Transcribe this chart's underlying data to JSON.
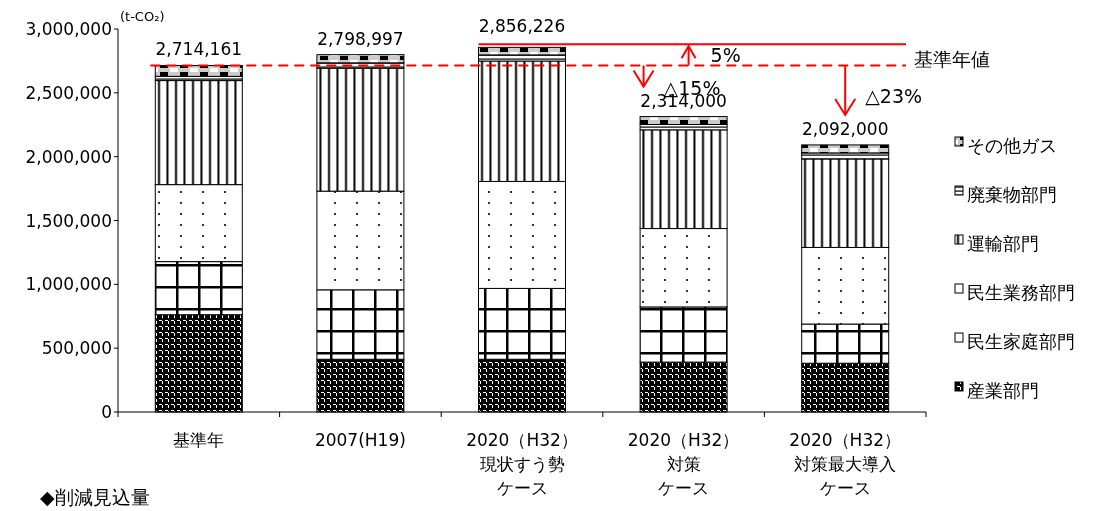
{
  "chart_data": {
    "type": "bar",
    "stacked": true,
    "ylabel": "(t-CO₂)",
    "categories": [
      "基準年",
      "2007(H19)",
      "2020（H32）現状すう勢ケース",
      "2020（H32）対策ケース",
      "2020（H32）対策最大導入ケース"
    ],
    "series": [
      {
        "name": "産業部門",
        "color": "#000000",
        "values": [
          762000,
          413000,
          413000,
          391000,
          382000
        ]
      },
      {
        "name": "民生家庭部門",
        "color": "#000000",
        "values": [
          416000,
          544000,
          555000,
          432000,
          307000
        ]
      },
      {
        "name": "民生業務部門",
        "color": "#000000",
        "values": [
          603000,
          773000,
          838000,
          614000,
          600000
        ]
      },
      {
        "name": "運輸部門",
        "color": "#000000",
        "values": [
          815000,
          963000,
          943000,
          773000,
          693000
        ]
      },
      {
        "name": "廃棄物部門",
        "color": "#000000",
        "values": [
          33000,
          42000,
          48000,
          42000,
          47000
        ]
      },
      {
        "name": "その他ガス",
        "color": "#000000",
        "values": [
          85161,
          63997,
          59226,
          62000,
          63000
        ]
      }
    ],
    "totals": [
      "2,714,161",
      "2,798,997",
      "2,856,226",
      "2,314,000",
      "2,092,000"
    ],
    "ylim": [
      0,
      3000000
    ],
    "yticks": [
      {
        "value": 0,
        "label": "0"
      },
      {
        "value": 500000,
        "label": "500,000"
      },
      {
        "value": 1000000,
        "label": "1,000,000"
      },
      {
        "value": 1500000,
        "label": "1,500,000"
      },
      {
        "value": 2000000,
        "label": "2,000,000"
      },
      {
        "value": 2500000,
        "label": "2,500,000"
      },
      {
        "value": 3000000,
        "label": "3,000,000"
      }
    ],
    "ref_lines": [
      {
        "axis": "y",
        "value": 2714161,
        "label": "基準年値",
        "color": "#ff0000",
        "line_style": "dashed"
      },
      {
        "axis": "y",
        "value": 2880000,
        "color": "#ff0000",
        "line_style": "solid"
      }
    ],
    "annotations": [
      "5%",
      {
        "text": "△15%",
        "x": "2020（H32）対策ケース",
        "y": 2314000
      },
      {
        "text": "△23%",
        "x": "2020（H32）対策最大導入ケース",
        "y": 2092000
      },
      "◆削減見込量"
    ],
    "legend": "right",
    "grid": false
  }
}
